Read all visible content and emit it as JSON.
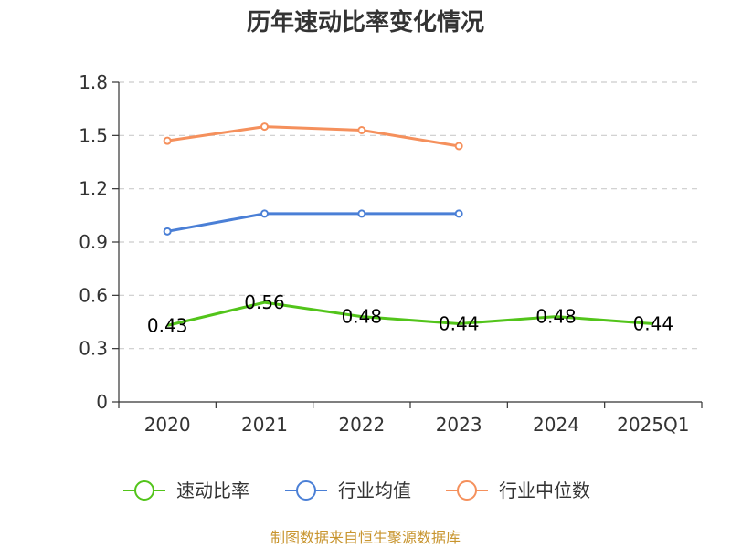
{
  "chart_data": {
    "type": "line",
    "title": "历年速动比率变化情况",
    "categories": [
      "2020",
      "2021",
      "2022",
      "2023",
      "2024",
      "2025Q1"
    ],
    "y_ticks": [
      "0",
      "0.3",
      "0.6",
      "0.9",
      "1.2",
      "1.5",
      "1.8"
    ],
    "ylim": [
      0,
      1.8
    ],
    "grid": true,
    "legend_position": "bottom",
    "series": [
      {
        "name": "速动比率",
        "color": "#52c41a",
        "values": [
          0.43,
          0.56,
          0.48,
          0.44,
          0.48,
          0.44
        ],
        "labels": [
          "0.43",
          "0.56",
          "0.48",
          "0.44",
          "0.48",
          "0.44"
        ],
        "show_markers": false
      },
      {
        "name": "行业均值",
        "color": "#4a7fd6",
        "values": [
          0.96,
          1.06,
          1.06,
          1.06,
          null,
          null
        ],
        "show_markers": true
      },
      {
        "name": "行业中位数",
        "color": "#f5905c",
        "values": [
          1.47,
          1.55,
          1.53,
          1.44,
          null,
          null
        ],
        "show_markers": true
      }
    ],
    "source": "制图数据来自恒生聚源数据库"
  }
}
